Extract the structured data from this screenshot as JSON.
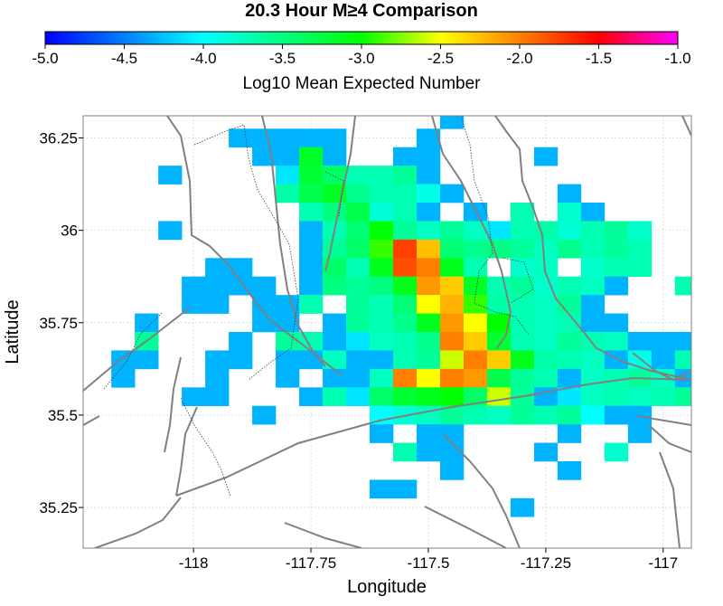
{
  "title": "20.3 Hour M≥4 Comparison",
  "colorbar": {
    "label": "Log10 Mean Expected Number",
    "ticks": [
      "-5.0",
      "-4.5",
      "-4.0",
      "-3.5",
      "-3.0",
      "-2.5",
      "-2.0",
      "-1.5",
      "-1.0"
    ],
    "range": [
      -5.0,
      -1.0
    ]
  },
  "axes": {
    "xlabel": "Longitude",
    "ylabel": "Latitude",
    "xlim": [
      -118.235,
      -116.94
    ],
    "ylim": [
      35.14,
      36.31
    ],
    "xticks": [
      -118,
      -117.75,
      -117.5,
      -117.25,
      -117
    ],
    "xtick_labels": [
      "-118",
      "-117.75",
      "-117.5",
      "-117.25",
      "-117"
    ],
    "yticks": [
      35.25,
      35.5,
      35.75,
      36,
      36.25
    ],
    "ytick_labels": [
      "35.25",
      "35.5",
      "35.75",
      "36",
      "36.25"
    ]
  },
  "chart_data": {
    "type": "heatmap",
    "title": "20.3 Hour M≥4 Comparison",
    "xlabel": "Longitude",
    "ylabel": "Latitude",
    "value_label": "Log10 Mean Expected Number",
    "color_range": [
      -5.0,
      -1.0
    ],
    "cell_size_deg": 0.05,
    "cells": [
      [
        -117.9,
        36.25,
        -4.3
      ],
      [
        -117.85,
        36.25,
        -4.3
      ],
      [
        -117.8,
        36.25,
        -4.3
      ],
      [
        -117.75,
        36.25,
        -4.3
      ],
      [
        -117.7,
        36.25,
        -4.3
      ],
      [
        -117.45,
        36.3,
        -4.3
      ],
      [
        -117.5,
        36.25,
        -4.3
      ],
      [
        -117.85,
        36.2,
        -4.3
      ],
      [
        -117.8,
        36.2,
        -4.3
      ],
      [
        -117.75,
        36.2,
        -3.15
      ],
      [
        -117.7,
        36.2,
        -4.3
      ],
      [
        -117.55,
        36.2,
        -4.3
      ],
      [
        -117.5,
        36.2,
        -4.3
      ],
      [
        -117.25,
        36.2,
        -4.3
      ],
      [
        -118.05,
        36.15,
        -4.3
      ],
      [
        -117.8,
        36.15,
        -4.1
      ],
      [
        -117.75,
        36.15,
        -3.2
      ],
      [
        -117.7,
        36.15,
        -3.4
      ],
      [
        -117.65,
        36.15,
        -3.7
      ],
      [
        -117.6,
        36.15,
        -3.7
      ],
      [
        -117.55,
        36.15,
        -3.6
      ],
      [
        -117.5,
        36.15,
        -4.3
      ],
      [
        -117.8,
        36.1,
        -3.65
      ],
      [
        -117.75,
        36.1,
        -3.3
      ],
      [
        -117.7,
        36.1,
        -3.15
      ],
      [
        -117.65,
        36.1,
        -3.55
      ],
      [
        -117.6,
        36.1,
        -3.7
      ],
      [
        -117.55,
        36.1,
        -3.7
      ],
      [
        -117.5,
        36.1,
        -3.9
      ],
      [
        -117.45,
        36.1,
        -4.3
      ],
      [
        -117.2,
        36.1,
        -4.3
      ],
      [
        -117.75,
        36.05,
        -3.7
      ],
      [
        -117.7,
        36.05,
        -3.5
      ],
      [
        -117.65,
        36.05,
        -3.3
      ],
      [
        -117.6,
        36.05,
        -3.85
      ],
      [
        -117.55,
        36.05,
        -3.7
      ],
      [
        -117.5,
        36.05,
        -4.3
      ],
      [
        -117.4,
        36.05,
        -4.3
      ],
      [
        -117.3,
        36.05,
        -3.7
      ],
      [
        -117.2,
        36.05,
        -3.8
      ],
      [
        -117.15,
        36.05,
        -4.3
      ],
      [
        -118.05,
        36.0,
        -4.3
      ],
      [
        -117.75,
        36.0,
        -4.3
      ],
      [
        -117.7,
        36.0,
        -3.7
      ],
      [
        -117.65,
        36.0,
        -3.45
      ],
      [
        -117.6,
        36.0,
        -3.0
      ],
      [
        -117.55,
        36.0,
        -3.6
      ],
      [
        -117.5,
        36.0,
        -3.75
      ],
      [
        -117.45,
        36.0,
        -3.6
      ],
      [
        -117.4,
        36.0,
        -3.75
      ],
      [
        -117.35,
        36.0,
        -4.1
      ],
      [
        -117.3,
        36.0,
        -3.7
      ],
      [
        -117.25,
        36.0,
        -3.65
      ],
      [
        -117.2,
        36.0,
        -3.85
      ],
      [
        -117.15,
        36.0,
        -3.7
      ],
      [
        -117.1,
        36.0,
        -3.6
      ],
      [
        -117.05,
        36.0,
        -3.8
      ],
      [
        -117.75,
        35.95,
        -4.3
      ],
      [
        -117.7,
        35.95,
        -3.6
      ],
      [
        -117.65,
        35.95,
        -3.4
      ],
      [
        -117.6,
        35.95,
        -2.9
      ],
      [
        -117.55,
        35.95,
        -1.75
      ],
      [
        -117.5,
        35.95,
        -2.25
      ],
      [
        -117.45,
        35.95,
        -3.45
      ],
      [
        -117.4,
        35.95,
        -3.55
      ],
      [
        -117.35,
        35.95,
        -3.5
      ],
      [
        -117.3,
        35.95,
        -3.6
      ],
      [
        -117.25,
        35.95,
        -3.75
      ],
      [
        -117.2,
        35.95,
        -3.55
      ],
      [
        -117.15,
        35.95,
        -3.7
      ],
      [
        -117.1,
        35.95,
        -3.6
      ],
      [
        -117.05,
        35.95,
        -3.7
      ],
      [
        -117.95,
        35.9,
        -4.3
      ],
      [
        -117.9,
        35.9,
        -4.3
      ],
      [
        -117.75,
        35.9,
        -4.3
      ],
      [
        -117.7,
        35.9,
        -3.4
      ],
      [
        -117.65,
        35.9,
        -3.7
      ],
      [
        -117.6,
        35.9,
        -3.1
      ],
      [
        -117.55,
        35.9,
        -1.8
      ],
      [
        -117.5,
        35.9,
        -2.0
      ],
      [
        -117.45,
        35.9,
        -3.1
      ],
      [
        -117.4,
        35.9,
        -3.7
      ],
      [
        -117.3,
        35.9,
        -3.8
      ],
      [
        -117.25,
        35.9,
        -3.75
      ],
      [
        -117.15,
        35.9,
        -3.8
      ],
      [
        -117.1,
        35.9,
        -3.7
      ],
      [
        -117.05,
        35.9,
        -3.7
      ],
      [
        -118.0,
        35.85,
        -4.3
      ],
      [
        -117.95,
        35.85,
        -4.3
      ],
      [
        -117.9,
        35.85,
        -4.3
      ],
      [
        -117.85,
        35.85,
        -4.3
      ],
      [
        -117.75,
        35.85,
        -4.3
      ],
      [
        -117.7,
        35.85,
        -3.5
      ],
      [
        -117.65,
        35.85,
        -3.6
      ],
      [
        -117.6,
        35.85,
        -3.5
      ],
      [
        -117.55,
        35.85,
        -3.1
      ],
      [
        -117.5,
        35.85,
        -2.1
      ],
      [
        -117.45,
        35.85,
        -2.3
      ],
      [
        -117.4,
        35.85,
        -3.15
      ],
      [
        -117.35,
        35.85,
        -3.7
      ],
      [
        -117.3,
        35.85,
        -3.6
      ],
      [
        -117.25,
        35.85,
        -3.8
      ],
      [
        -117.2,
        35.85,
        -3.7
      ],
      [
        -117.15,
        35.85,
        -3.75
      ],
      [
        -117.1,
        35.85,
        -4.3
      ],
      [
        -116.95,
        35.85,
        -3.7
      ],
      [
        -116.9,
        35.85,
        -4.3
      ],
      [
        -118.0,
        35.8,
        -4.3
      ],
      [
        -117.95,
        35.8,
        -4.3
      ],
      [
        -117.85,
        35.8,
        -4.3
      ],
      [
        -117.8,
        35.8,
        -4.3
      ],
      [
        -117.75,
        35.8,
        -3.7
      ],
      [
        -117.65,
        35.8,
        -3.6
      ],
      [
        -117.6,
        35.8,
        -3.7
      ],
      [
        -117.55,
        35.8,
        -3.45
      ],
      [
        -117.5,
        35.8,
        -2.5
      ],
      [
        -117.45,
        35.8,
        -2.2
      ],
      [
        -117.4,
        35.8,
        -2.9
      ],
      [
        -117.35,
        35.8,
        -3.65
      ],
      [
        -117.3,
        35.8,
        -3.7
      ],
      [
        -117.25,
        35.8,
        -3.75
      ],
      [
        -117.2,
        35.8,
        -3.6
      ],
      [
        -117.15,
        35.8,
        -4.3
      ],
      [
        -118.1,
        35.75,
        -4.3
      ],
      [
        -117.85,
        35.75,
        -4.3
      ],
      [
        -117.8,
        35.75,
        -4.3
      ],
      [
        -117.7,
        35.75,
        -4.3
      ],
      [
        -117.65,
        35.75,
        -3.6
      ],
      [
        -117.6,
        35.75,
        -3.7
      ],
      [
        -117.55,
        35.75,
        -3.55
      ],
      [
        -117.5,
        35.75,
        -3.1
      ],
      [
        -117.45,
        35.75,
        -2.1
      ],
      [
        -117.4,
        35.75,
        -2.5
      ],
      [
        -117.35,
        35.75,
        -3.0
      ],
      [
        -117.3,
        35.75,
        -3.7
      ],
      [
        -117.25,
        35.75,
        -3.75
      ],
      [
        -117.2,
        35.75,
        -3.7
      ],
      [
        -117.15,
        35.75,
        -4.3
      ],
      [
        -117.1,
        35.75,
        -4.3
      ],
      [
        -118.1,
        35.7,
        -3.6
      ],
      [
        -117.9,
        35.7,
        -4.3
      ],
      [
        -117.8,
        35.7,
        -3.6
      ],
      [
        -117.75,
        35.7,
        -3.7
      ],
      [
        -117.7,
        35.7,
        -4.3
      ],
      [
        -117.65,
        35.7,
        -4.1
      ],
      [
        -117.6,
        35.7,
        -3.75
      ],
      [
        -117.55,
        35.7,
        -3.7
      ],
      [
        -117.5,
        35.7,
        -3.55
      ],
      [
        -117.45,
        35.7,
        -2.0
      ],
      [
        -117.4,
        35.7,
        -2.3
      ],
      [
        -117.35,
        35.7,
        -3.2
      ],
      [
        -117.3,
        35.7,
        -3.7
      ],
      [
        -117.25,
        35.7,
        -3.75
      ],
      [
        -117.2,
        35.7,
        -3.6
      ],
      [
        -117.15,
        35.7,
        -3.7
      ],
      [
        -117.1,
        35.7,
        -3.75
      ],
      [
        -117.05,
        35.7,
        -4.3
      ],
      [
        -117.0,
        35.7,
        -4.3
      ],
      [
        -116.95,
        35.7,
        -4.3
      ],
      [
        -118.15,
        35.65,
        -4.3
      ],
      [
        -118.1,
        35.65,
        -4.3
      ],
      [
        -117.95,
        35.65,
        -4.3
      ],
      [
        -117.9,
        35.65,
        -4.3
      ],
      [
        -117.8,
        35.65,
        -4.3
      ],
      [
        -117.75,
        35.65,
        -4.3
      ],
      [
        -117.7,
        35.65,
        -3.75
      ],
      [
        -117.65,
        35.65,
        -4.3
      ],
      [
        -117.6,
        35.65,
        -4.3
      ],
      [
        -117.55,
        35.65,
        -3.7
      ],
      [
        -117.5,
        35.65,
        -3.6
      ],
      [
        -117.45,
        35.65,
        -2.6
      ],
      [
        -117.4,
        35.65,
        -2.0
      ],
      [
        -117.35,
        35.65,
        -2.3
      ],
      [
        -117.3,
        35.65,
        -3.1
      ],
      [
        -117.25,
        35.65,
        -3.65
      ],
      [
        -117.2,
        35.65,
        -3.7
      ],
      [
        -117.15,
        35.65,
        -3.75
      ],
      [
        -117.1,
        35.65,
        -4.3
      ],
      [
        -117.05,
        35.65,
        -3.9
      ],
      [
        -117.0,
        35.65,
        -4.3
      ],
      [
        -116.95,
        35.65,
        -3.7
      ],
      [
        -116.9,
        35.65,
        -4.3
      ],
      [
        -116.85,
        35.65,
        -4.3
      ],
      [
        -116.8,
        35.65,
        -4.3
      ],
      [
        -118.15,
        35.6,
        -4.3
      ],
      [
        -117.95,
        35.6,
        -4.3
      ],
      [
        -117.8,
        35.6,
        -4.3
      ],
      [
        -117.7,
        35.6,
        -4.3
      ],
      [
        -117.65,
        35.6,
        -4.3
      ],
      [
        -117.6,
        35.6,
        -3.75
      ],
      [
        -117.55,
        35.6,
        -2.0
      ],
      [
        -117.5,
        35.6,
        -2.5
      ],
      [
        -117.45,
        35.6,
        -2.0
      ],
      [
        -117.4,
        35.6,
        -2.1
      ],
      [
        -117.35,
        35.6,
        -3.3
      ],
      [
        -117.3,
        35.6,
        -3.6
      ],
      [
        -117.25,
        35.6,
        -3.7
      ],
      [
        -117.2,
        35.6,
        -4.3
      ],
      [
        -117.15,
        35.6,
        -3.75
      ],
      [
        -117.1,
        35.6,
        -3.7
      ],
      [
        -117.05,
        35.6,
        -3.6
      ],
      [
        -117.0,
        35.6,
        -3.75
      ],
      [
        -116.95,
        35.6,
        -4.3
      ],
      [
        -116.9,
        35.6,
        -4.3
      ],
      [
        -116.85,
        35.6,
        -3.9
      ],
      [
        -118.0,
        35.55,
        -4.3
      ],
      [
        -117.95,
        35.55,
        -4.3
      ],
      [
        -117.75,
        35.55,
        -4.3
      ],
      [
        -117.7,
        35.55,
        -3.7
      ],
      [
        -117.65,
        35.55,
        -4.1
      ],
      [
        -117.6,
        35.55,
        -3.4
      ],
      [
        -117.55,
        35.55,
        -3.2
      ],
      [
        -117.5,
        35.55,
        -3.1
      ],
      [
        -117.45,
        35.55,
        -3.0
      ],
      [
        -117.4,
        35.55,
        -3.4
      ],
      [
        -117.35,
        35.55,
        -2.6
      ],
      [
        -117.3,
        35.55,
        -3.6
      ],
      [
        -117.25,
        35.55,
        -4.3
      ],
      [
        -117.2,
        35.55,
        -4.1
      ],
      [
        -117.15,
        35.55,
        -3.75
      ],
      [
        -117.1,
        35.55,
        -3.7
      ],
      [
        -117.05,
        35.55,
        -3.75
      ],
      [
        -117.0,
        35.55,
        -3.7
      ],
      [
        -116.95,
        35.55,
        -3.6
      ],
      [
        -116.9,
        35.55,
        -3.7
      ],
      [
        -116.85,
        35.55,
        -3.65
      ],
      [
        -117.85,
        35.5,
        -4.3
      ],
      [
        -117.6,
        35.5,
        -4.0
      ],
      [
        -117.55,
        35.5,
        -3.85
      ],
      [
        -117.5,
        35.5,
        -3.75
      ],
      [
        -117.45,
        35.5,
        -3.6
      ],
      [
        -117.4,
        35.5,
        -3.7
      ],
      [
        -117.35,
        35.5,
        -3.75
      ],
      [
        -117.3,
        35.5,
        -3.6
      ],
      [
        -117.25,
        35.5,
        -3.7
      ],
      [
        -117.2,
        35.5,
        -3.6
      ],
      [
        -117.15,
        35.5,
        -4.0
      ],
      [
        -117.1,
        35.5,
        -4.3
      ],
      [
        -117.05,
        35.5,
        -4.3
      ],
      [
        -117.6,
        35.45,
        -4.3
      ],
      [
        -117.5,
        35.45,
        -4.3
      ],
      [
        -117.45,
        35.45,
        -4.3
      ],
      [
        -117.2,
        35.45,
        -4.3
      ],
      [
        -117.05,
        35.45,
        -4.3
      ],
      [
        -117.55,
        35.4,
        -3.7
      ],
      [
        -117.5,
        35.4,
        -4.3
      ],
      [
        -117.45,
        35.4,
        -4.3
      ],
      [
        -117.25,
        35.4,
        -4.3
      ],
      [
        -117.1,
        35.4,
        -3.8
      ],
      [
        -117.45,
        35.35,
        -4.3
      ],
      [
        -117.2,
        35.35,
        -4.3
      ],
      [
        -117.6,
        35.3,
        -4.3
      ],
      [
        -117.55,
        35.3,
        -4.3
      ],
      [
        -117.3,
        35.25,
        -4.3
      ]
    ]
  }
}
